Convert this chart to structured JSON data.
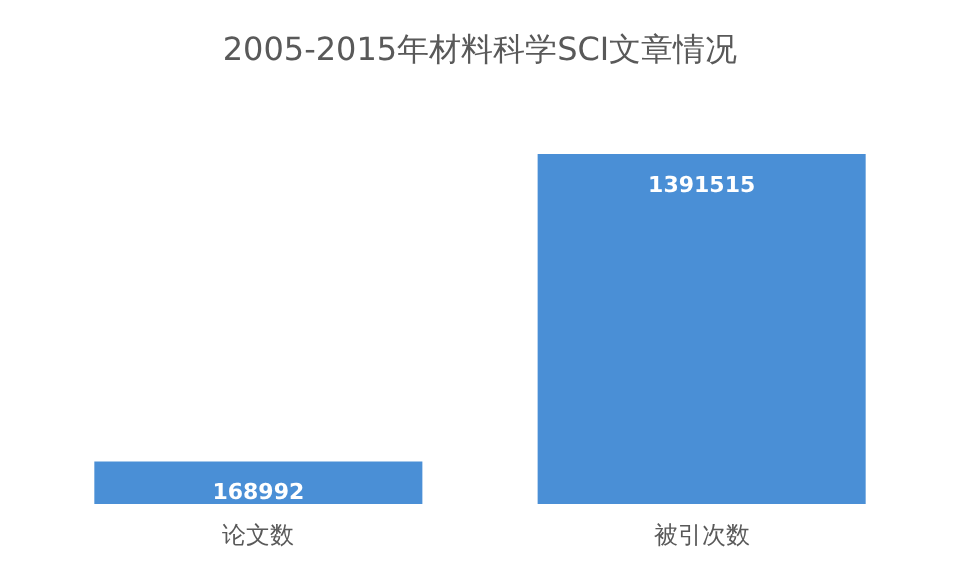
{
  "chart_data": {
    "type": "bar",
    "title": "2005-2015年材料科学SCI文章情况",
    "categories": [
      "论文数",
      "被引次数"
    ],
    "values": [
      168992,
      1391515
    ],
    "color": "#4a8fd6",
    "data_labels": true
  }
}
